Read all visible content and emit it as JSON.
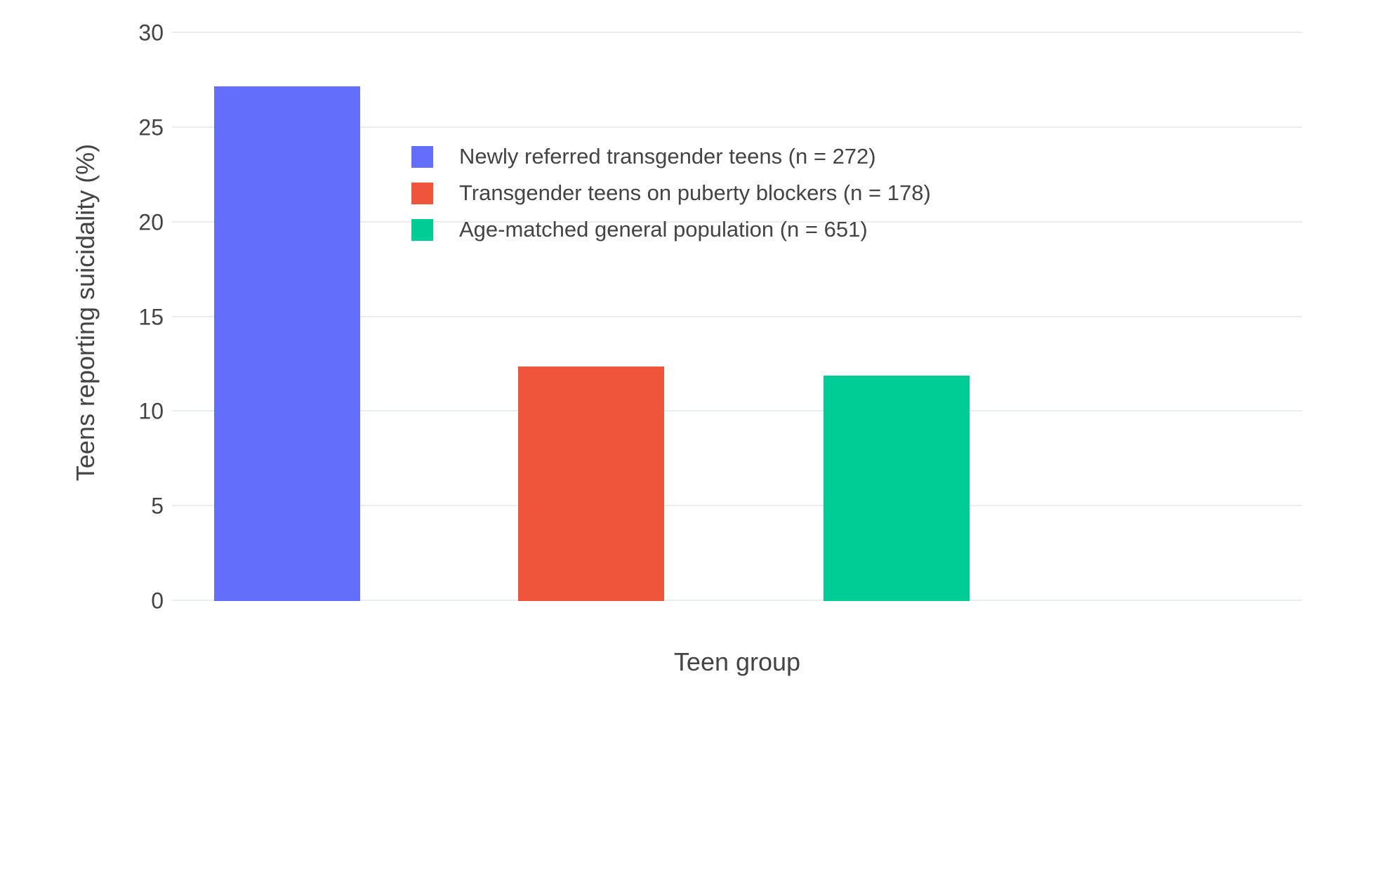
{
  "chart_data": {
    "type": "bar",
    "xlabel": "Teen group",
    "ylabel": "Teens reporting suicidality (%)",
    "ylim": [
      0,
      30
    ],
    "yticks": [
      0,
      5,
      10,
      15,
      20,
      25,
      30
    ],
    "grid": true,
    "legend_position": "inside-top-right",
    "background": "#ffffff",
    "gridline_color": "#E9EDF2",
    "series": [
      {
        "name": "Newly referred transgender teens (n = 272)",
        "value": 27.2,
        "color": "#636EFA"
      },
      {
        "name": "Transgender teens on puberty blockers (n = 178)",
        "value": 12.4,
        "color": "#EF553B"
      },
      {
        "name": "Age-matched general population (n = 651)",
        "value": 11.9,
        "color": "#00CC96"
      }
    ]
  }
}
